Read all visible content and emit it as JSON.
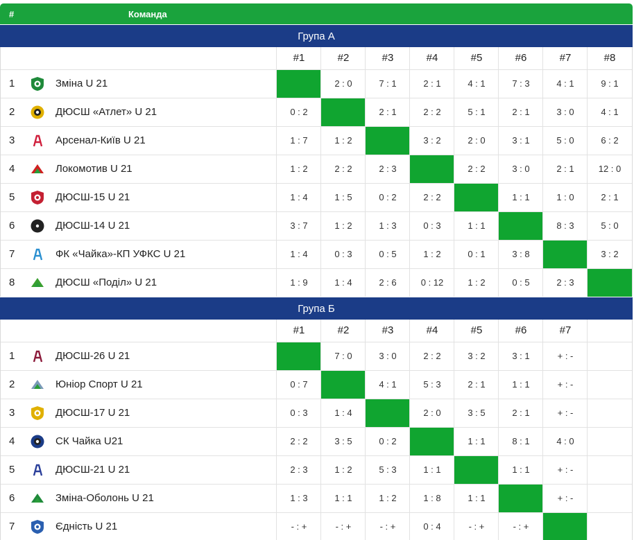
{
  "header": {
    "num_label": "#",
    "team_label": "Команда"
  },
  "groups": [
    {
      "title": "Група А",
      "columns": [
        "#1",
        "#2",
        "#3",
        "#4",
        "#5",
        "#6",
        "#7",
        "#8"
      ],
      "rows": [
        {
          "pos": "1",
          "team": "Зміна U 21",
          "logo": "zmina-crest-icon",
          "color": "#1f8a3a",
          "results": [
            "",
            "2 : 0",
            "7 : 1",
            "2 : 1",
            "4 : 1",
            "7 : 3",
            "4 : 1",
            "9 : 1"
          ]
        },
        {
          "pos": "2",
          "team": "ДЮСШ «Атлет» U 21",
          "logo": "atlet-ball-icon",
          "color": "#e0b000",
          "results": [
            "0 : 2",
            "",
            "2 : 1",
            "2 : 2",
            "5 : 1",
            "2 : 1",
            "3 : 0",
            "4 : 1"
          ]
        },
        {
          "pos": "3",
          "team": "Арсенал-Київ U 21",
          "logo": "arsenal-cannon-icon",
          "color": "#d01f3c",
          "results": [
            "1 : 7",
            "1 : 2",
            "",
            "3 : 2",
            "2 : 0",
            "3 : 1",
            "5 : 0",
            "6 : 2"
          ]
        },
        {
          "pos": "4",
          "team": "Локомотив U 21",
          "logo": "lokomotiv-icon",
          "color": "#d02020",
          "results": [
            "1 : 2",
            "2 : 2",
            "2 : 3",
            "",
            "2 : 2",
            "3 : 0",
            "2 : 1",
            "12 : 0"
          ]
        },
        {
          "pos": "5",
          "team": "ДЮСШ-15 U 21",
          "logo": "dyussh15-crest-icon",
          "color": "#c42032",
          "results": [
            "1 : 4",
            "1 : 5",
            "0 : 2",
            "2 : 2",
            "",
            "1 : 1",
            "1 : 0",
            "2 : 1"
          ]
        },
        {
          "pos": "6",
          "team": "ДЮСШ-14 U 21",
          "logo": "dyussh14-ball-icon",
          "color": "#222222",
          "results": [
            "3 : 7",
            "1 : 2",
            "1 : 3",
            "0 : 3",
            "1 : 1",
            "",
            "8 : 3",
            "5 : 0"
          ]
        },
        {
          "pos": "7",
          "team": "ФК «Чайка»-КП УФКС U 21",
          "logo": "chaika-seagull-icon",
          "color": "#2a8fd0",
          "results": [
            "1 : 4",
            "0 : 3",
            "0 : 5",
            "1 : 2",
            "0 : 1",
            "3 : 8",
            "",
            "3 : 2"
          ]
        },
        {
          "pos": "8",
          "team": "ДЮСШ «Поділ» U 21",
          "logo": "podil-crest-icon",
          "color": "#3aa030",
          "results": [
            "1 : 9",
            "1 : 4",
            "2 : 6",
            "0 : 12",
            "1 : 2",
            "0 : 5",
            "2 : 3",
            ""
          ]
        }
      ]
    },
    {
      "title": "Група Б",
      "columns": [
        "#1",
        "#2",
        "#3",
        "#4",
        "#5",
        "#6",
        "#7"
      ],
      "rows": [
        {
          "pos": "1",
          "team": "ДЮСШ-26 U 21",
          "logo": "dyussh26-crest-icon",
          "color": "#8b1a3a",
          "results": [
            "",
            "7 : 0",
            "3 : 0",
            "2 : 2",
            "3 : 2",
            "3 : 1",
            "+ : -"
          ]
        },
        {
          "pos": "2",
          "team": "Юніор Спорт U 21",
          "logo": "junior-sport-icon",
          "color": "#7a9ab8",
          "results": [
            "0 : 7",
            "",
            "4 : 1",
            "5 : 3",
            "2 : 1",
            "1 : 1",
            "+ : -"
          ]
        },
        {
          "pos": "3",
          "team": "ДЮСШ-17 U 21",
          "logo": "dyussh17-ball-icon",
          "color": "#e0b000",
          "results": [
            "0 : 3",
            "1 : 4",
            "",
            "2 : 0",
            "3 : 5",
            "2 : 1",
            "+ : -"
          ]
        },
        {
          "pos": "4",
          "team": "СК Чайка U21",
          "logo": "sk-chaika-icon",
          "color": "#1b3c87",
          "results": [
            "2 : 2",
            "3 : 5",
            "0 : 2",
            "",
            "1 : 1",
            "8 : 1",
            "4 : 0"
          ]
        },
        {
          "pos": "5",
          "team": "ДЮСШ-21 U 21",
          "logo": "dyussh21-crest-icon",
          "color": "#2a3f9a",
          "results": [
            "2 : 3",
            "1 : 2",
            "5 : 3",
            "1 : 1",
            "",
            "1 : 1",
            "+ : -"
          ]
        },
        {
          "pos": "6",
          "team": "Зміна-Оболонь U 21",
          "logo": "zmina-obolon-crest-icon",
          "color": "#1f8a3a",
          "results": [
            "1 : 3",
            "1 : 1",
            "1 : 2",
            "1 : 8",
            "1 : 1",
            "",
            "+ : -"
          ]
        },
        {
          "pos": "7",
          "team": "Єдність U 21",
          "logo": "yednist-crest-icon",
          "color": "#2a5fb0",
          "results": [
            "- : +",
            "- : +",
            "- : +",
            "0 : 4",
            "- : +",
            "- : +",
            ""
          ]
        }
      ]
    }
  ]
}
